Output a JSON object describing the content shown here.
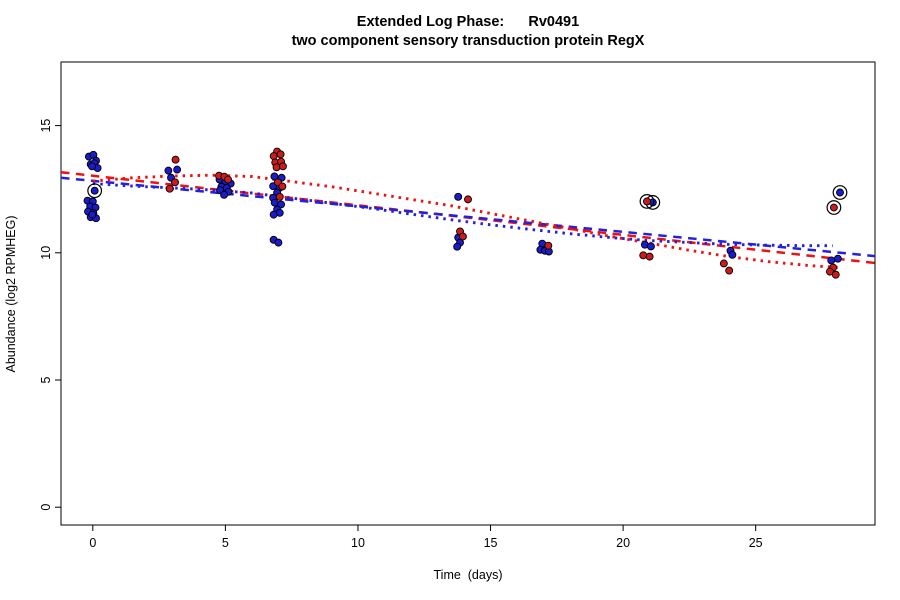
{
  "figure": {
    "background": "#ffffff",
    "frame_color": "#000000"
  },
  "chart_data": {
    "type": "scatter",
    "title": "Extended Log Phase:      Rv0491",
    "subtitle": "two component sensory transduction protein RegX",
    "xlabel": "Time  (days)",
    "ylabel": "Abundance (log2 RPMHEG)",
    "xlim": [
      -1.2,
      29.5
    ],
    "ylim": [
      -0.7,
      17.5
    ],
    "xticks": [
      0,
      5,
      10,
      15,
      20,
      25
    ],
    "yticks": [
      0,
      5,
      10,
      15
    ],
    "grid": false,
    "legend": "none",
    "marker_colors": {
      "blue": "#1b1bcd",
      "red": "#cd1b1b",
      "ring": "#000000"
    },
    "line_colors": {
      "blue": "#2222dd",
      "red": "#ee1111"
    },
    "series": [
      {
        "name": "blue-points",
        "color": "#1b1bcd",
        "marked": false,
        "points": [
          [
            -0.15,
            13.78
          ],
          [
            0.02,
            13.85
          ],
          [
            0.12,
            13.62
          ],
          [
            -0.08,
            13.48
          ],
          [
            0.06,
            13.52
          ],
          [
            0.18,
            13.33
          ],
          [
            -0.03,
            13.4
          ],
          [
            -0.2,
            12.05
          ],
          [
            0.0,
            12.02
          ],
          [
            -0.1,
            11.82
          ],
          [
            0.1,
            11.78
          ],
          [
            -0.18,
            11.62
          ],
          [
            0.02,
            11.56
          ],
          [
            -0.08,
            11.4
          ],
          [
            0.12,
            11.36
          ],
          [
            -0.02,
            11.5
          ],
          [
            2.85,
            13.23
          ],
          [
            3.18,
            13.27
          ],
          [
            2.95,
            12.95
          ],
          [
            4.78,
            12.88
          ],
          [
            5.0,
            12.82
          ],
          [
            5.2,
            12.72
          ],
          [
            4.85,
            12.6
          ],
          [
            5.05,
            12.55
          ],
          [
            4.8,
            12.46
          ],
          [
            5.12,
            12.4
          ],
          [
            4.95,
            12.28
          ],
          [
            6.85,
            13.0
          ],
          [
            7.12,
            12.95
          ],
          [
            6.8,
            12.62
          ],
          [
            7.05,
            12.56
          ],
          [
            6.95,
            12.36
          ],
          [
            6.8,
            12.16
          ],
          [
            6.86,
            11.97
          ],
          [
            7.1,
            11.9
          ],
          [
            6.95,
            11.7
          ],
          [
            7.05,
            11.57
          ],
          [
            6.82,
            11.5
          ],
          [
            6.82,
            10.51
          ],
          [
            7.0,
            10.4
          ],
          [
            13.78,
            12.2
          ],
          [
            13.78,
            10.6
          ],
          [
            13.85,
            10.4
          ],
          [
            13.74,
            10.24
          ],
          [
            16.95,
            10.36
          ],
          [
            16.88,
            10.12
          ],
          [
            17.05,
            10.08
          ],
          [
            17.2,
            10.05
          ],
          [
            20.82,
            10.32
          ],
          [
            21.05,
            10.25
          ],
          [
            24.05,
            10.08
          ],
          [
            24.12,
            9.92
          ],
          [
            27.85,
            9.7
          ],
          [
            28.1,
            9.77
          ]
        ]
      },
      {
        "name": "red-points",
        "color": "#cd1b1b",
        "marked": false,
        "points": [
          [
            3.12,
            13.66
          ],
          [
            3.1,
            12.77
          ],
          [
            2.9,
            12.52
          ],
          [
            4.76,
            13.03
          ],
          [
            4.96,
            12.99
          ],
          [
            5.1,
            12.88
          ],
          [
            6.95,
            13.98
          ],
          [
            6.82,
            13.8
          ],
          [
            7.08,
            13.87
          ],
          [
            6.88,
            13.55
          ],
          [
            7.1,
            13.58
          ],
          [
            6.93,
            13.36
          ],
          [
            7.17,
            13.4
          ],
          [
            6.98,
            12.77
          ],
          [
            7.15,
            12.61
          ],
          [
            7.05,
            12.2
          ],
          [
            14.15,
            12.1
          ],
          [
            13.85,
            10.84
          ],
          [
            13.96,
            10.64
          ],
          [
            17.18,
            10.28
          ],
          [
            20.76,
            9.9
          ],
          [
            21.0,
            9.85
          ],
          [
            23.8,
            9.58
          ],
          [
            24.0,
            9.3
          ],
          [
            27.92,
            9.42
          ],
          [
            27.8,
            9.26
          ],
          [
            28.02,
            9.14
          ]
        ]
      },
      {
        "name": "blue-circled-points",
        "color": "#1b1bcd",
        "marked": true,
        "points": [
          [
            0.07,
            12.44
          ],
          [
            21.12,
            11.98
          ],
          [
            28.18,
            12.37
          ]
        ]
      },
      {
        "name": "red-circled-points",
        "color": "#cd1b1b",
        "marked": true,
        "points": [
          [
            20.9,
            12.02
          ],
          [
            27.95,
            11.78
          ]
        ]
      }
    ],
    "lines": [
      {
        "name": "red-linear-fit",
        "color": "#ee1111",
        "style": "dashed",
        "points": [
          [
            -1.2,
            13.17
          ],
          [
            29.5,
            9.6
          ]
        ]
      },
      {
        "name": "blue-linear-fit",
        "color": "#2222dd",
        "style": "dashed",
        "points": [
          [
            -1.2,
            12.95
          ],
          [
            29.5,
            9.87
          ]
        ]
      },
      {
        "name": "red-loess-fit",
        "color": "#ee1111",
        "style": "dotted",
        "points": [
          [
            0,
            12.82
          ],
          [
            1.5,
            12.95
          ],
          [
            3,
            13.02
          ],
          [
            4.5,
            13.05
          ],
          [
            6,
            13.0
          ],
          [
            7.5,
            12.8
          ],
          [
            9,
            12.6
          ],
          [
            10.5,
            12.35
          ],
          [
            12,
            12.1
          ],
          [
            13.5,
            11.85
          ],
          [
            15,
            11.55
          ],
          [
            16.5,
            11.25
          ],
          [
            18,
            10.95
          ],
          [
            19.5,
            10.65
          ],
          [
            21,
            10.38
          ],
          [
            22.5,
            10.1
          ],
          [
            24,
            9.85
          ],
          [
            25.5,
            9.65
          ],
          [
            27,
            9.5
          ],
          [
            28.2,
            9.42
          ]
        ]
      },
      {
        "name": "blue-loess-fit",
        "color": "#2222dd",
        "style": "dotted",
        "points": [
          [
            0,
            12.72
          ],
          [
            1.5,
            12.62
          ],
          [
            3,
            12.55
          ],
          [
            4.5,
            12.47
          ],
          [
            6,
            12.35
          ],
          [
            7.5,
            12.15
          ],
          [
            9,
            11.95
          ],
          [
            10.5,
            11.75
          ],
          [
            12,
            11.52
          ],
          [
            13.5,
            11.3
          ],
          [
            15,
            11.1
          ],
          [
            16.5,
            10.92
          ],
          [
            18,
            10.75
          ],
          [
            19.5,
            10.6
          ],
          [
            21,
            10.48
          ],
          [
            22.5,
            10.4
          ],
          [
            24,
            10.33
          ],
          [
            25.5,
            10.3
          ],
          [
            27,
            10.28
          ],
          [
            27.9,
            10.28
          ]
        ]
      }
    ]
  }
}
